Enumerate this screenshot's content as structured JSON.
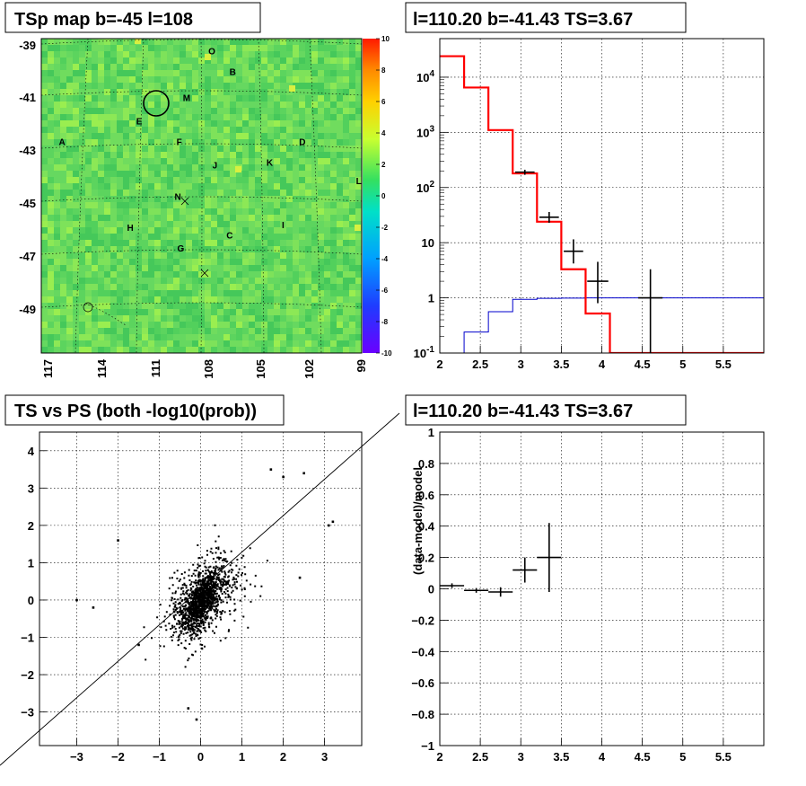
{
  "colors": {
    "map_bg": "#5fd35f",
    "red": "#ff0000",
    "blue": "#0000cc",
    "black": "#000000"
  },
  "chart_data": [
    {
      "type": "heatmap",
      "title": "TSp map b=-45 l=108",
      "xlabel": "",
      "ylabel": "",
      "xticks": [
        "117",
        "114",
        "111",
        "108",
        "105",
        "102",
        "99"
      ],
      "yticks": [
        "-39",
        "-41",
        "-43",
        "-45",
        "-47",
        "-49"
      ],
      "colorbar": {
        "range": [
          -10,
          10
        ],
        "ticks": [
          "10",
          "8",
          "6",
          "4",
          "2",
          "0",
          "-2",
          "-4",
          "-6",
          "-8",
          "-10"
        ]
      },
      "sources": [
        {
          "label": "O",
          "l": 109.1,
          "b": -39.2
        },
        {
          "label": "B",
          "l": 107.7,
          "b": -40.0
        },
        {
          "label": "M",
          "l": 110.8,
          "b": -41.0
        },
        {
          "label": "E",
          "l": 114.0,
          "b": -41.9
        },
        {
          "label": "A",
          "l": 119.2,
          "b": -42.7
        },
        {
          "label": "F",
          "l": 111.3,
          "b": -42.7
        },
        {
          "label": "D",
          "l": 103.0,
          "b": -42.7
        },
        {
          "label": "J",
          "l": 108.9,
          "b": -43.6
        },
        {
          "label": "K",
          "l": 105.2,
          "b": -43.5
        },
        {
          "label": "L",
          "l": 99.2,
          "b": -44.2
        },
        {
          "label": "N",
          "l": 111.4,
          "b": -44.8
        },
        {
          "label": "H",
          "l": 114.6,
          "b": -46.0
        },
        {
          "label": "I",
          "l": 104.3,
          "b": -45.9
        },
        {
          "label": "C",
          "l": 107.9,
          "b": -46.3
        },
        {
          "label": "G",
          "l": 111.2,
          "b": -46.8
        }
      ]
    },
    {
      "type": "line",
      "title": "l=110.20 b=-41.43 TS=3.67",
      "xlabel": "",
      "ylabel": "",
      "xlim": [
        2,
        6
      ],
      "ylim": [
        0.1,
        50000
      ],
      "yscale": "log",
      "xticks": [
        "2",
        "2.5",
        "3",
        "3.5",
        "4",
        "4.5",
        "5",
        "5.5"
      ],
      "yticks": [
        "10^4",
        "10^3",
        "10^2",
        "10",
        "1",
        "10^-1"
      ],
      "series": [
        {
          "style": "red-step",
          "edges": [
            2,
            2.3,
            2.6,
            2.9,
            3.2,
            3.5,
            3.8,
            4.1,
            4.4,
            6
          ],
          "values": [
            24000,
            6500,
            1100,
            180,
            24,
            3.3,
            0.52,
            0.1,
            0.1
          ]
        },
        {
          "style": "blue-step",
          "edges": [
            2,
            2.3,
            2.6,
            2.9,
            3.2,
            3.5,
            3.8,
            4.1,
            6
          ],
          "values": [
            0.1,
            0.24,
            0.56,
            0.94,
            0.98,
            0.99,
            1.0,
            1.0
          ]
        },
        {
          "style": "black-points",
          "points": [
            {
              "x": 3.05,
              "y": 190,
              "dx": 0.12,
              "ylo": 170,
              "yhi": 210
            },
            {
              "x": 3.35,
              "y": 29,
              "dx": 0.12,
              "ylo": 23,
              "yhi": 36
            },
            {
              "x": 3.65,
              "y": 7,
              "dx": 0.12,
              "ylo": 4.2,
              "yhi": 11.5
            },
            {
              "x": 3.95,
              "y": 2,
              "dx": 0.13,
              "ylo": 0.8,
              "yhi": 4.5
            },
            {
              "x": 4.6,
              "y": 1,
              "dx": 0.15,
              "ylo": 0.1,
              "yhi": 3.3
            }
          ]
        }
      ]
    },
    {
      "type": "scatter",
      "title": "TS vs PS (both -log10(prob))",
      "xlabel": "",
      "ylabel": "",
      "xlim": [
        -3.9,
        3.9
      ],
      "ylim": [
        -3.9,
        4.5
      ],
      "xticks": [
        "-3",
        "-2",
        "-1",
        "0",
        "1",
        "2",
        "3"
      ],
      "yticks": [
        "4",
        "3",
        "2",
        "1",
        "0",
        "-1",
        "-2",
        "-3"
      ],
      "reference_line": {
        "slope": 1,
        "intercept": 0
      },
      "distribution": {
        "core_sigma_x": 0.22,
        "core_sigma_y": 0.4,
        "correlation": 0.7,
        "n_points": 9000
      },
      "outliers": [
        {
          "x": -3.0,
          "y": 0.0
        },
        {
          "x": -2.6,
          "y": -0.2
        },
        {
          "x": -2.0,
          "y": 1.6
        },
        {
          "x": 1.7,
          "y": 3.5
        },
        {
          "x": 2.0,
          "y": 3.3
        },
        {
          "x": 2.5,
          "y": 3.4
        },
        {
          "x": 3.1,
          "y": 2.0
        },
        {
          "x": 3.2,
          "y": 2.1
        },
        {
          "x": -0.1,
          "y": -3.2
        },
        {
          "x": -0.3,
          "y": -2.9
        },
        {
          "x": -1.5,
          "y": -1.2
        },
        {
          "x": 2.4,
          "y": 0.6
        }
      ]
    },
    {
      "type": "scatter",
      "title": "l=110.20 b=-41.43 TS=3.67",
      "xlabel": "",
      "ylabel": "(data-model)/model",
      "xlim": [
        2,
        6
      ],
      "ylim": [
        -1,
        1
      ],
      "xticks": [
        "2",
        "2.5",
        "3",
        "3.5",
        "4",
        "4.5",
        "5",
        "5.5"
      ],
      "yticks": [
        "1",
        "0.8",
        "0.6",
        "0.4",
        "0.2",
        "0",
        "-0.2",
        "-0.4",
        "-0.6",
        "-0.8",
        "-1"
      ],
      "points": [
        {
          "x": 2.15,
          "y": 0.02,
          "dx": 0.15,
          "dy": 0.015
        },
        {
          "x": 2.45,
          "y": -0.01,
          "dx": 0.15,
          "dy": 0.015
        },
        {
          "x": 2.75,
          "y": -0.02,
          "dx": 0.15,
          "dy": 0.03
        },
        {
          "x": 3.05,
          "y": 0.12,
          "dx": 0.15,
          "dy": 0.08
        },
        {
          "x": 3.35,
          "y": 0.2,
          "dx": 0.15,
          "dy": 0.22
        }
      ]
    }
  ]
}
